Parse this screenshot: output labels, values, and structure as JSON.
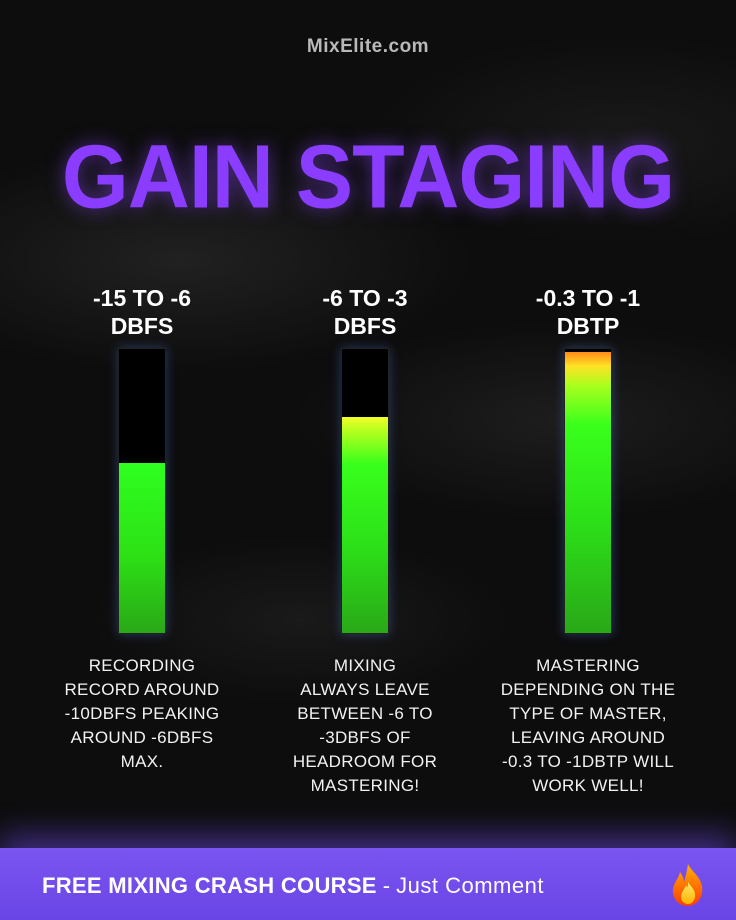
{
  "brand": "MixElite.com",
  "title": "GAIN STAGING",
  "meters": [
    {
      "range_line1": "-15 TO -6",
      "range_line2": "DBFS",
      "level": 0.6,
      "description": [
        "RECORDING",
        "RECORD AROUND",
        "-10DBFS PEAKING",
        "AROUND -6DBFS",
        "MAX."
      ]
    },
    {
      "range_line1": "-6 TO -3",
      "range_line2": "DBFS",
      "level": 0.76,
      "description": [
        "MIXING",
        "ALWAYS LEAVE",
        "BETWEEN -6 TO",
        "-3DBFS OF",
        "HEADROOM FOR",
        "MASTERING!"
      ]
    },
    {
      "range_line1": "-0.3 TO -1",
      "range_line2": "DBTP",
      "level": 0.99,
      "description": [
        "MASTERING",
        "DEPENDING ON THE",
        "TYPE OF MASTER,",
        "LEAVING AROUND",
        "-0.3 TO -1DBTP WILL",
        "WORK WELL!"
      ]
    }
  ],
  "footer": {
    "cta_bold": "FREE MIXING CRASH COURSE",
    "separator": "-",
    "cta_light": "Just Comment",
    "icon": "flame-icon"
  },
  "colors": {
    "title": "#8a3cff",
    "footer": "#7b55f0",
    "meter_green": "#2eff20",
    "meter_yellow": "#f4ff2a",
    "meter_peak": "#ff8a1a"
  }
}
